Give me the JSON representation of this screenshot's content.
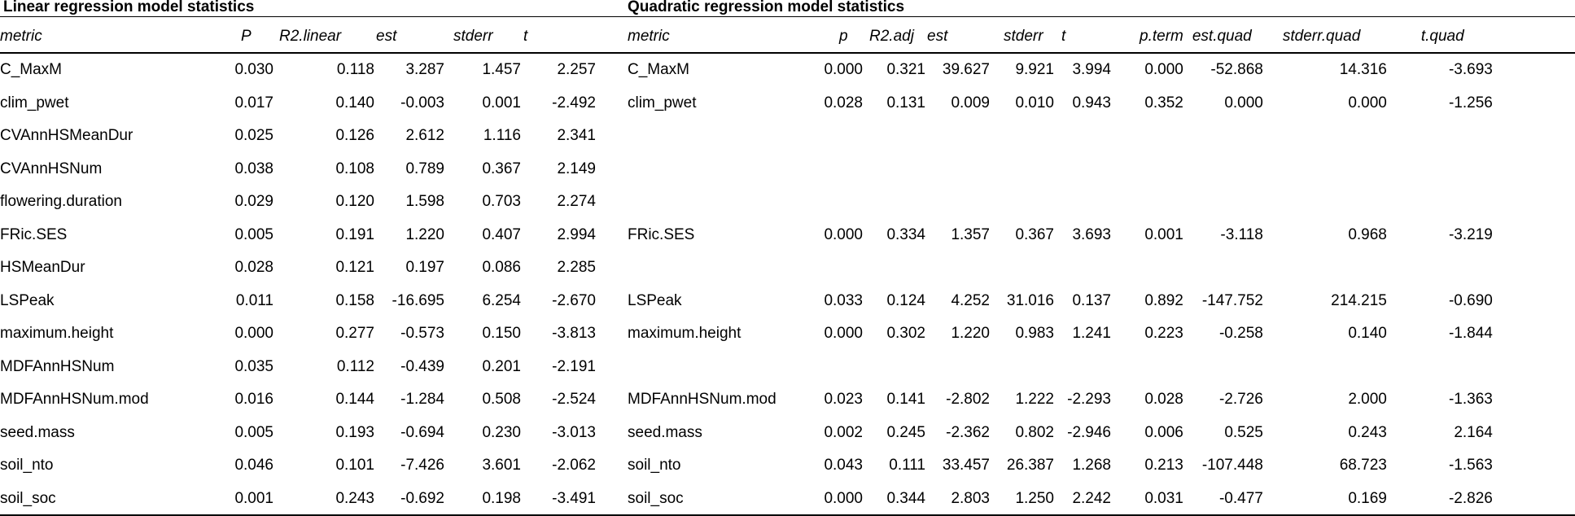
{
  "linear": {
    "title": "Linear regression model statistics",
    "headers": [
      "metric",
      "P",
      "R2.linear",
      "est",
      "stderr",
      "t"
    ]
  },
  "quadratic": {
    "title": "Quadratic regression model statistics",
    "headers": [
      "metric",
      "p",
      "R2.adj",
      "est",
      "stderr",
      "t",
      "p.term",
      "est.quad",
      "stderr.quad",
      "t.quad"
    ]
  },
  "rows": [
    {
      "lin": [
        "C_MaxM",
        "0.030",
        "0.118",
        "3.287",
        "1.457",
        "2.257"
      ],
      "quad": [
        "C_MaxM",
        "0.000",
        "0.321",
        "39.627",
        "9.921",
        "3.994",
        "0.000",
        "-52.868",
        "14.316",
        "-3.693"
      ]
    },
    {
      "lin": [
        "clim_pwet",
        "0.017",
        "0.140",
        "-0.003",
        "0.001",
        "-2.492"
      ],
      "quad": [
        "clim_pwet",
        "0.028",
        "0.131",
        "0.009",
        "0.010",
        "0.943",
        "0.352",
        "0.000",
        "0.000",
        "-1.256"
      ]
    },
    {
      "lin": [
        "CVAnnHSMeanDur",
        "0.025",
        "0.126",
        "2.612",
        "1.116",
        "2.341"
      ],
      "quad": [
        "",
        "",
        "",
        "",
        "",
        "",
        "",
        "",
        "",
        ""
      ]
    },
    {
      "lin": [
        "CVAnnHSNum",
        "0.038",
        "0.108",
        "0.789",
        "0.367",
        "2.149"
      ],
      "quad": [
        "",
        "",
        "",
        "",
        "",
        "",
        "",
        "",
        "",
        ""
      ]
    },
    {
      "lin": [
        "flowering.duration",
        "0.029",
        "0.120",
        "1.598",
        "0.703",
        "2.274"
      ],
      "quad": [
        "",
        "",
        "",
        "",
        "",
        "",
        "",
        "",
        "",
        ""
      ]
    },
    {
      "lin": [
        "FRic.SES",
        "0.005",
        "0.191",
        "1.220",
        "0.407",
        "2.994"
      ],
      "quad": [
        "FRic.SES",
        "0.000",
        "0.334",
        "1.357",
        "0.367",
        "3.693",
        "0.001",
        "-3.118",
        "0.968",
        "-3.219"
      ]
    },
    {
      "lin": [
        "HSMeanDur",
        "0.028",
        "0.121",
        "0.197",
        "0.086",
        "2.285"
      ],
      "quad": [
        "",
        "",
        "",
        "",
        "",
        "",
        "",
        "",
        "",
        ""
      ]
    },
    {
      "lin": [
        "LSPeak",
        "0.011",
        "0.158",
        "-16.695",
        "6.254",
        "-2.670"
      ],
      "quad": [
        "LSPeak",
        "0.033",
        "0.124",
        "4.252",
        "31.016",
        "0.137",
        "0.892",
        "-147.752",
        "214.215",
        "-0.690"
      ]
    },
    {
      "lin": [
        "maximum.height",
        "0.000",
        "0.277",
        "-0.573",
        "0.150",
        "-3.813"
      ],
      "quad": [
        "maximum.height",
        "0.000",
        "0.302",
        "1.220",
        "0.983",
        "1.241",
        "0.223",
        "-0.258",
        "0.140",
        "-1.844"
      ]
    },
    {
      "lin": [
        "MDFAnnHSNum",
        "0.035",
        "0.112",
        "-0.439",
        "0.201",
        "-2.191"
      ],
      "quad": [
        "",
        "",
        "",
        "",
        "",
        "",
        "",
        "",
        "",
        ""
      ]
    },
    {
      "lin": [
        "MDFAnnHSNum.mod",
        "0.016",
        "0.144",
        "-1.284",
        "0.508",
        "-2.524"
      ],
      "quad": [
        "MDFAnnHSNum.mod",
        "0.023",
        "0.141",
        "-2.802",
        "1.222",
        "-2.293",
        "0.028",
        "-2.726",
        "2.000",
        "-1.363"
      ]
    },
    {
      "lin": [
        "seed.mass",
        "0.005",
        "0.193",
        "-0.694",
        "0.230",
        "-3.013"
      ],
      "quad": [
        "seed.mass",
        "0.002",
        "0.245",
        "-2.362",
        "0.802",
        "-2.946",
        "0.006",
        "0.525",
        "0.243",
        "2.164"
      ]
    },
    {
      "lin": [
        "soil_nto",
        "0.046",
        "0.101",
        "-7.426",
        "3.601",
        "-2.062"
      ],
      "quad": [
        "soil_nto",
        "0.043",
        "0.111",
        "33.457",
        "26.387",
        "1.268",
        "0.213",
        "-107.448",
        "68.723",
        "-1.563"
      ]
    },
    {
      "lin": [
        "soil_soc",
        "0.001",
        "0.243",
        "-0.692",
        "0.198",
        "-3.491"
      ],
      "quad": [
        "soil_soc",
        "0.000",
        "0.344",
        "2.803",
        "1.250",
        "2.242",
        "0.031",
        "-0.477",
        "0.169",
        "-2.826"
      ]
    }
  ]
}
